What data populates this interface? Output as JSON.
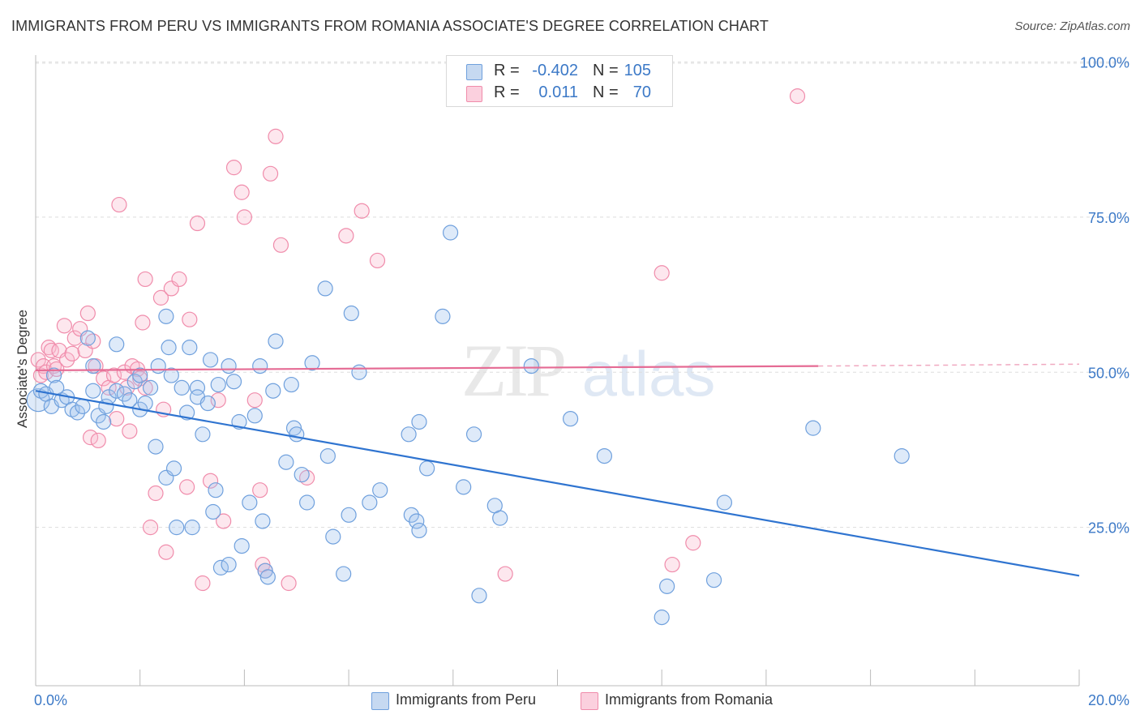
{
  "title": "IMMIGRANTS FROM PERU VS IMMIGRANTS FROM ROMANIA ASSOCIATE'S DEGREE CORRELATION CHART",
  "source": "Source: ZipAtlas.com",
  "watermark": {
    "zip": "ZIP",
    "atlas": "atlas"
  },
  "legend_top": {
    "rows": [
      {
        "r_label": "R =",
        "r_value": "-0.402",
        "n_label": "N =",
        "n_value": "105",
        "color": "#6fa0dd"
      },
      {
        "r_label": "R =",
        "r_value": "0.011",
        "n_label": "N =",
        "n_value": "70",
        "color": "#f08cab"
      }
    ]
  },
  "legend_bottom": [
    {
      "label": "Immigrants from Peru",
      "color": "#6fa0dd"
    },
    {
      "label": "Immigrants from Romania",
      "color": "#f08cab"
    }
  ],
  "chart_data": {
    "type": "scatter",
    "title": "IMMIGRANTS FROM PERU VS IMMIGRANTS FROM ROMANIA ASSOCIATE'S DEGREE CORRELATION CHART",
    "xlabel": "",
    "ylabel": "Associate's Degree",
    "xlim": [
      0,
      20
    ],
    "ylim": [
      0,
      100
    ],
    "x_tick_labels": [
      "0.0%",
      "20.0%"
    ],
    "y_tick_labels": [
      "100.0%",
      "75.0%",
      "50.0%",
      "25.0%"
    ],
    "y_ticks": [
      100,
      75,
      50,
      25
    ],
    "grid": true,
    "legend_position": "top-center",
    "colors": {
      "peru": "#3a7bd5",
      "romania": "#e8709a"
    },
    "series": [
      {
        "name": "Immigrants from Peru",
        "color": "#3a7bd5",
        "trend": {
          "x0": 0,
          "y0": 47,
          "x1": 20,
          "y1": 17.2
        },
        "points": [
          [
            0.05,
            45.5,
            "L"
          ],
          [
            0.1,
            47
          ],
          [
            0.2,
            46.5
          ],
          [
            0.3,
            44.5
          ],
          [
            0.35,
            49.5
          ],
          [
            0.4,
            47.5
          ],
          [
            0.5,
            45.5
          ],
          [
            0.6,
            46
          ],
          [
            0.7,
            44
          ],
          [
            0.8,
            43.5
          ],
          [
            0.9,
            44.5
          ],
          [
            1.0,
            55.5
          ],
          [
            1.1,
            51
          ],
          [
            1.1,
            47
          ],
          [
            1.2,
            43
          ],
          [
            1.3,
            42
          ],
          [
            1.35,
            44.5
          ],
          [
            1.4,
            46
          ],
          [
            1.55,
            47
          ],
          [
            1.55,
            54.5
          ],
          [
            1.7,
            46.5
          ],
          [
            1.8,
            45.5
          ],
          [
            1.9,
            48.5
          ],
          [
            2.0,
            49.5
          ],
          [
            2.0,
            44
          ],
          [
            2.1,
            45
          ],
          [
            2.2,
            47.5
          ],
          [
            2.3,
            38
          ],
          [
            2.35,
            51
          ],
          [
            2.5,
            33
          ],
          [
            2.5,
            59
          ],
          [
            2.55,
            54
          ],
          [
            2.6,
            49.5
          ],
          [
            2.65,
            34.5
          ],
          [
            2.7,
            25
          ],
          [
            2.8,
            47.5
          ],
          [
            2.9,
            43.5
          ],
          [
            2.95,
            54
          ],
          [
            3.0,
            25
          ],
          [
            3.1,
            47.5
          ],
          [
            3.1,
            46
          ],
          [
            3.2,
            40
          ],
          [
            3.3,
            45
          ],
          [
            3.35,
            52
          ],
          [
            3.4,
            27.5
          ],
          [
            3.45,
            31
          ],
          [
            3.5,
            48
          ],
          [
            3.55,
            18.5
          ],
          [
            3.7,
            51
          ],
          [
            3.7,
            19
          ],
          [
            3.8,
            48.5
          ],
          [
            3.9,
            42
          ],
          [
            3.95,
            22
          ],
          [
            4.1,
            29
          ],
          [
            4.2,
            43
          ],
          [
            4.3,
            51
          ],
          [
            4.35,
            26
          ],
          [
            4.4,
            18
          ],
          [
            4.45,
            17
          ],
          [
            4.55,
            47
          ],
          [
            4.6,
            55
          ],
          [
            4.8,
            35.5
          ],
          [
            4.9,
            48
          ],
          [
            4.95,
            41
          ],
          [
            5.0,
            40
          ],
          [
            5.1,
            33.5
          ],
          [
            5.2,
            29
          ],
          [
            5.3,
            51.5
          ],
          [
            5.55,
            63.5
          ],
          [
            5.6,
            36.5
          ],
          [
            5.7,
            23.5
          ],
          [
            5.9,
            17.5
          ],
          [
            6.0,
            27
          ],
          [
            6.05,
            59.5
          ],
          [
            6.4,
            29
          ],
          [
            6.2,
            50
          ],
          [
            6.6,
            31
          ],
          [
            7.15,
            40
          ],
          [
            7.2,
            27
          ],
          [
            7.3,
            26
          ],
          [
            7.35,
            24.5
          ],
          [
            7.35,
            42
          ],
          [
            7.5,
            34.5
          ],
          [
            7.8,
            59
          ],
          [
            7.95,
            72.5
          ],
          [
            8.2,
            31.5
          ],
          [
            8.4,
            40
          ],
          [
            8.5,
            14
          ],
          [
            8.8,
            28.5
          ],
          [
            8.9,
            26.5
          ],
          [
            9.5,
            51
          ],
          [
            10.25,
            42.5
          ],
          [
            10.9,
            36.5
          ],
          [
            12.1,
            15.5
          ],
          [
            12.0,
            10.5
          ],
          [
            13.0,
            16.5
          ],
          [
            13.2,
            29
          ],
          [
            14.9,
            41
          ],
          [
            16.6,
            36.5
          ]
        ]
      },
      {
        "name": "Immigrants from Romania",
        "color": "#e8709a",
        "trend": {
          "x0": 0,
          "y0": 50.3,
          "x1": 15.0,
          "y1": 51.0,
          "x2": 20,
          "y2": 51.3
        },
        "points": [
          [
            0.05,
            52
          ],
          [
            0.1,
            49.5
          ],
          [
            0.15,
            51
          ],
          [
            0.2,
            50
          ],
          [
            0.25,
            54
          ],
          [
            0.3,
            53.5
          ],
          [
            0.35,
            51
          ],
          [
            0.4,
            50.5
          ],
          [
            0.45,
            53.5
          ],
          [
            0.55,
            57.5
          ],
          [
            0.6,
            52
          ],
          [
            0.7,
            53
          ],
          [
            0.75,
            55.5
          ],
          [
            0.85,
            57
          ],
          [
            0.95,
            53.5
          ],
          [
            1.0,
            59.5
          ],
          [
            1.05,
            39.5
          ],
          [
            1.1,
            55
          ],
          [
            1.15,
            51
          ],
          [
            1.2,
            39
          ],
          [
            1.3,
            49
          ],
          [
            1.4,
            47.5
          ],
          [
            1.5,
            49.5
          ],
          [
            1.55,
            42.5
          ],
          [
            1.6,
            77
          ],
          [
            1.7,
            50
          ],
          [
            1.75,
            47.5
          ],
          [
            1.8,
            40.5
          ],
          [
            1.85,
            51
          ],
          [
            1.95,
            50.5
          ],
          [
            2.0,
            49
          ],
          [
            2.05,
            58
          ],
          [
            2.1,
            65
          ],
          [
            2.1,
            47.5
          ],
          [
            2.2,
            25
          ],
          [
            2.3,
            30.5
          ],
          [
            2.4,
            62
          ],
          [
            2.45,
            44
          ],
          [
            2.5,
            21
          ],
          [
            2.6,
            63.5
          ],
          [
            2.75,
            65
          ],
          [
            2.9,
            31.5
          ],
          [
            2.95,
            58.5
          ],
          [
            3.1,
            74
          ],
          [
            3.2,
            16
          ],
          [
            3.35,
            32.5
          ],
          [
            3.5,
            45.5
          ],
          [
            3.6,
            26
          ],
          [
            3.8,
            83
          ],
          [
            3.95,
            79
          ],
          [
            4.0,
            75
          ],
          [
            4.2,
            45.5
          ],
          [
            4.3,
            31
          ],
          [
            4.35,
            19
          ],
          [
            4.4,
            18
          ],
          [
            4.5,
            82
          ],
          [
            4.6,
            88
          ],
          [
            4.7,
            70.5
          ],
          [
            4.85,
            16
          ],
          [
            5.2,
            33
          ],
          [
            5.95,
            72
          ],
          [
            6.25,
            76
          ],
          [
            6.55,
            68
          ],
          [
            9.0,
            17.5
          ],
          [
            12.0,
            66
          ],
          [
            12.2,
            19
          ],
          [
            12.6,
            22.5
          ],
          [
            14.6,
            94.5
          ]
        ]
      }
    ]
  }
}
